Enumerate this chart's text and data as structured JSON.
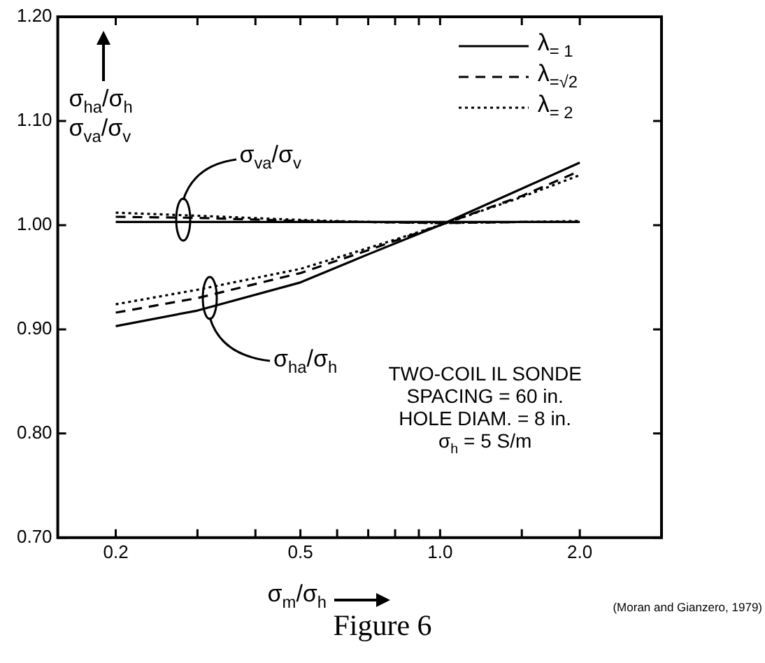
{
  "chart_data": {
    "type": "line",
    "title": "Figure 6",
    "xlabel": "σ$_{m}$/σ$_{h}$",
    "ylabel": "σ$_{ha}$/σ$_{h}$\nσ$_{va}$/σ$_{v}$",
    "log": "x",
    "grid": false,
    "legend": "top right",
    "marker": "none",
    "xlim": [
      0.15,
      3.0
    ],
    "xticks": [
      {
        "value": 0.2,
        "label": "0.2"
      },
      {
        "value": 0.3,
        "label": null
      },
      {
        "value": 0.4,
        "label": null
      },
      {
        "value": 0.5,
        "label": "0.5"
      },
      {
        "value": 0.6,
        "label": null
      },
      {
        "value": 0.7,
        "label": null
      },
      {
        "value": 0.8,
        "label": null
      },
      {
        "value": 0.9,
        "label": null
      },
      {
        "value": 1.0,
        "label": "1.0"
      },
      {
        "value": 1.5,
        "label": null
      },
      {
        "value": 2.0,
        "label": "2.0"
      }
    ],
    "ylim": [
      0.7,
      1.2
    ],
    "yticks": [
      {
        "value": 0.7,
        "label": "0.70"
      },
      {
        "value": 0.8,
        "label": "0.80"
      },
      {
        "value": 0.9,
        "label": "0.90"
      },
      {
        "value": 1.0,
        "label": "1.00"
      },
      {
        "value": 1.1,
        "label": "1.10"
      },
      {
        "value": 1.2,
        "label": "1.20"
      }
    ],
    "x": [
      0.2,
      0.3,
      0.5,
      0.7,
      1.0,
      1.5,
      2.0
    ],
    "series": [
      {
        "name": "λ$_{= 1}$",
        "color": "#000000",
        "line_style": "solid",
        "values": [
          0.903,
          0.918,
          0.945,
          0.972,
          1.0,
          1.035,
          1.06
        ]
      },
      {
        "name": "λ$_{=√2}$",
        "color": "#000000",
        "line_style": "dashed",
        "values": [
          0.916,
          0.93,
          0.954,
          0.976,
          1.0,
          1.028,
          1.052
        ]
      },
      {
        "name": "λ$_{= 2}$",
        "color": "#000000",
        "line_style": "dotted",
        "values": [
          0.924,
          0.938,
          0.958,
          0.978,
          1.0,
          1.027,
          1.048
        ]
      },
      {
        "color": "#000000",
        "line_style": "solid",
        "values": [
          1.003,
          1.003,
          1.003,
          1.003,
          1.003,
          1.003,
          1.003
        ]
      },
      {
        "color": "#000000",
        "line_style": "dashed",
        "values": [
          1.008,
          1.007,
          1.004,
          1.003,
          1.002,
          1.003,
          1.003
        ]
      },
      {
        "color": "#000000",
        "line_style": "dotted",
        "values": [
          1.012,
          1.009,
          1.005,
          1.003,
          1.002,
          1.003,
          1.004
        ]
      }
    ],
    "annotations": [
      "σ$_{va}$/σ$_{v}$",
      "σ$_{ha}$/σ$_{h}$",
      "TWO-COIL IL SONDE",
      "SPACING = 60 in.",
      "HOLE DIAM. = 8 in.",
      "σ$_{h}$ = 5 S/m",
      "(Moran and Gianzero, 1979)"
    ]
  }
}
